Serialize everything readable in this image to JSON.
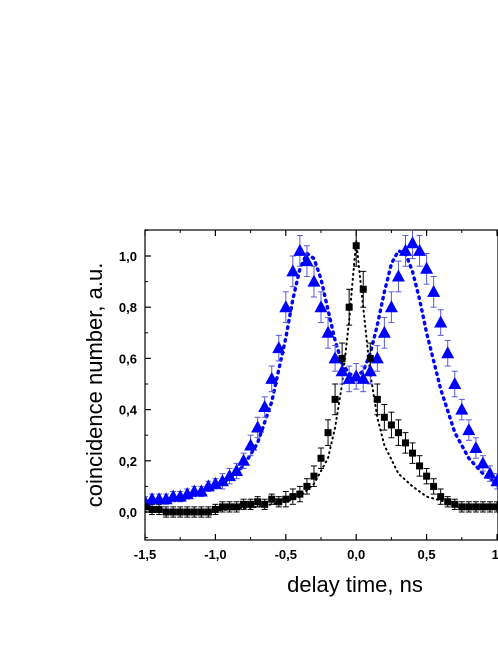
{
  "chart_data": {
    "type": "scatter",
    "xlabel": "delay time, ns",
    "ylabel": "coincidence number, a.u.",
    "xlim": [
      -1.5,
      1.0
    ],
    "ylim": [
      -0.1,
      1.1
    ],
    "x_ticks": [
      "-1,5",
      "-1,0",
      "-0,5",
      "0,0",
      "0,5",
      "1,"
    ],
    "x_tick_values": [
      -1.5,
      -1.0,
      -0.5,
      0.0,
      0.5,
      1.0
    ],
    "y_ticks": [
      "0,0",
      "0,2",
      "0,4",
      "0,6",
      "0,8",
      "1,0"
    ],
    "y_tick_values": [
      0.0,
      0.2,
      0.4,
      0.6,
      0.8,
      1.0
    ],
    "grid": false,
    "legend": "none",
    "series": [
      {
        "marker": "triangle",
        "color": "#0000ff",
        "error_color": "#5a5ad8",
        "x": [
          -1.5,
          -1.45,
          -1.4,
          -1.35,
          -1.3,
          -1.25,
          -1.2,
          -1.15,
          -1.1,
          -1.05,
          -1.0,
          -0.95,
          -0.9,
          -0.85,
          -0.8,
          -0.75,
          -0.7,
          -0.65,
          -0.6,
          -0.55,
          -0.5,
          -0.45,
          -0.4,
          -0.35,
          -0.3,
          -0.25,
          -0.2,
          -0.15,
          -0.1,
          -0.05,
          0.0,
          0.05,
          0.1,
          0.15,
          0.2,
          0.25,
          0.3,
          0.35,
          0.4,
          0.45,
          0.5,
          0.55,
          0.6,
          0.65,
          0.7,
          0.75,
          0.8,
          0.85,
          0.9,
          0.95,
          1.0
        ],
        "y": [
          0.04,
          0.05,
          0.05,
          0.05,
          0.06,
          0.06,
          0.07,
          0.08,
          0.08,
          0.1,
          0.11,
          0.12,
          0.14,
          0.16,
          0.2,
          0.26,
          0.33,
          0.41,
          0.52,
          0.64,
          0.8,
          0.94,
          1.02,
          0.98,
          0.9,
          0.8,
          0.7,
          0.6,
          0.55,
          0.52,
          0.53,
          0.52,
          0.55,
          0.6,
          0.7,
          0.8,
          0.92,
          1.02,
          1.05,
          1.02,
          0.95,
          0.86,
          0.74,
          0.62,
          0.5,
          0.4,
          0.32,
          0.25,
          0.19,
          0.15,
          0.12
        ],
        "yerr": [
          0.02,
          0.02,
          0.02,
          0.02,
          0.02,
          0.02,
          0.02,
          0.02,
          0.02,
          0.02,
          0.02,
          0.03,
          0.03,
          0.03,
          0.03,
          0.04,
          0.04,
          0.04,
          0.05,
          0.05,
          0.06,
          0.06,
          0.06,
          0.06,
          0.06,
          0.06,
          0.06,
          0.05,
          0.05,
          0.05,
          0.05,
          0.05,
          0.05,
          0.05,
          0.06,
          0.06,
          0.06,
          0.06,
          0.06,
          0.06,
          0.06,
          0.06,
          0.05,
          0.05,
          0.05,
          0.04,
          0.04,
          0.04,
          0.03,
          0.03,
          0.03
        ]
      },
      {
        "marker": "square",
        "color": "#000000",
        "error_color": "#000000",
        "x": [
          -1.5,
          -1.45,
          -1.4,
          -1.35,
          -1.3,
          -1.25,
          -1.2,
          -1.15,
          -1.1,
          -1.05,
          -1.0,
          -0.95,
          -0.9,
          -0.85,
          -0.8,
          -0.75,
          -0.7,
          -0.65,
          -0.6,
          -0.55,
          -0.5,
          -0.45,
          -0.4,
          -0.35,
          -0.3,
          -0.25,
          -0.2,
          -0.15,
          -0.1,
          -0.05,
          0.0,
          0.05,
          0.1,
          0.15,
          0.2,
          0.25,
          0.3,
          0.35,
          0.4,
          0.45,
          0.5,
          0.55,
          0.6,
          0.65,
          0.7,
          0.75,
          0.8,
          0.85,
          0.9,
          0.95,
          1.0
        ],
        "y": [
          0.02,
          0.01,
          0.01,
          0.0,
          0.0,
          0.0,
          0.0,
          0.0,
          0.0,
          0.0,
          0.01,
          0.02,
          0.02,
          0.02,
          0.03,
          0.03,
          0.04,
          0.03,
          0.05,
          0.04,
          0.05,
          0.06,
          0.07,
          0.1,
          0.14,
          0.21,
          0.31,
          0.44,
          0.6,
          0.8,
          1.04,
          0.87,
          0.6,
          0.44,
          0.37,
          0.34,
          0.31,
          0.27,
          0.23,
          0.18,
          0.14,
          0.1,
          0.06,
          0.04,
          0.03,
          0.02,
          0.02,
          0.02,
          0.02,
          0.02,
          0.02
        ],
        "yerr": [
          0.02,
          0.02,
          0.02,
          0.02,
          0.02,
          0.02,
          0.02,
          0.02,
          0.02,
          0.02,
          0.02,
          0.02,
          0.02,
          0.02,
          0.02,
          0.02,
          0.02,
          0.02,
          0.02,
          0.02,
          0.03,
          0.03,
          0.03,
          0.03,
          0.04,
          0.04,
          0.05,
          0.06,
          0.06,
          0.07,
          0.08,
          0.07,
          0.06,
          0.06,
          0.05,
          0.05,
          0.05,
          0.04,
          0.04,
          0.04,
          0.03,
          0.03,
          0.03,
          0.02,
          0.02,
          0.02,
          0.02,
          0.02,
          0.02,
          0.02,
          0.02
        ]
      }
    ],
    "fits": [
      {
        "color": "#0000ff",
        "style": "dotted",
        "x": [
          -1.5,
          -1.4,
          -1.3,
          -1.2,
          -1.1,
          -1.0,
          -0.9,
          -0.8,
          -0.7,
          -0.6,
          -0.5,
          -0.45,
          -0.4,
          -0.35,
          -0.3,
          -0.25,
          -0.2,
          -0.15,
          -0.1,
          -0.05,
          0.0,
          0.05,
          0.1,
          0.15,
          0.2,
          0.25,
          0.3,
          0.35,
          0.4,
          0.45,
          0.5,
          0.6,
          0.7,
          0.8,
          0.9,
          1.0
        ],
        "y": [
          0.03,
          0.04,
          0.05,
          0.06,
          0.08,
          0.1,
          0.13,
          0.18,
          0.27,
          0.43,
          0.68,
          0.83,
          0.95,
          1.01,
          0.99,
          0.91,
          0.79,
          0.67,
          0.58,
          0.54,
          0.53,
          0.55,
          0.62,
          0.73,
          0.86,
          0.97,
          1.02,
          1.01,
          0.94,
          0.83,
          0.7,
          0.48,
          0.31,
          0.21,
          0.15,
          0.11
        ]
      },
      {
        "color": "#000000",
        "style": "dotted",
        "x": [
          -1.5,
          -1.3,
          -1.1,
          -0.9,
          -0.7,
          -0.5,
          -0.4,
          -0.3,
          -0.2,
          -0.15,
          -0.1,
          -0.05,
          0.0,
          0.05,
          0.1,
          0.15,
          0.2,
          0.3,
          0.4,
          0.5,
          0.7,
          0.9,
          1.0
        ],
        "y": [
          0.0,
          0.0,
          0.0,
          0.01,
          0.02,
          0.04,
          0.06,
          0.11,
          0.21,
          0.33,
          0.5,
          0.75,
          1.06,
          0.8,
          0.54,
          0.37,
          0.26,
          0.15,
          0.1,
          0.06,
          0.03,
          0.02,
          0.01
        ]
      }
    ]
  }
}
